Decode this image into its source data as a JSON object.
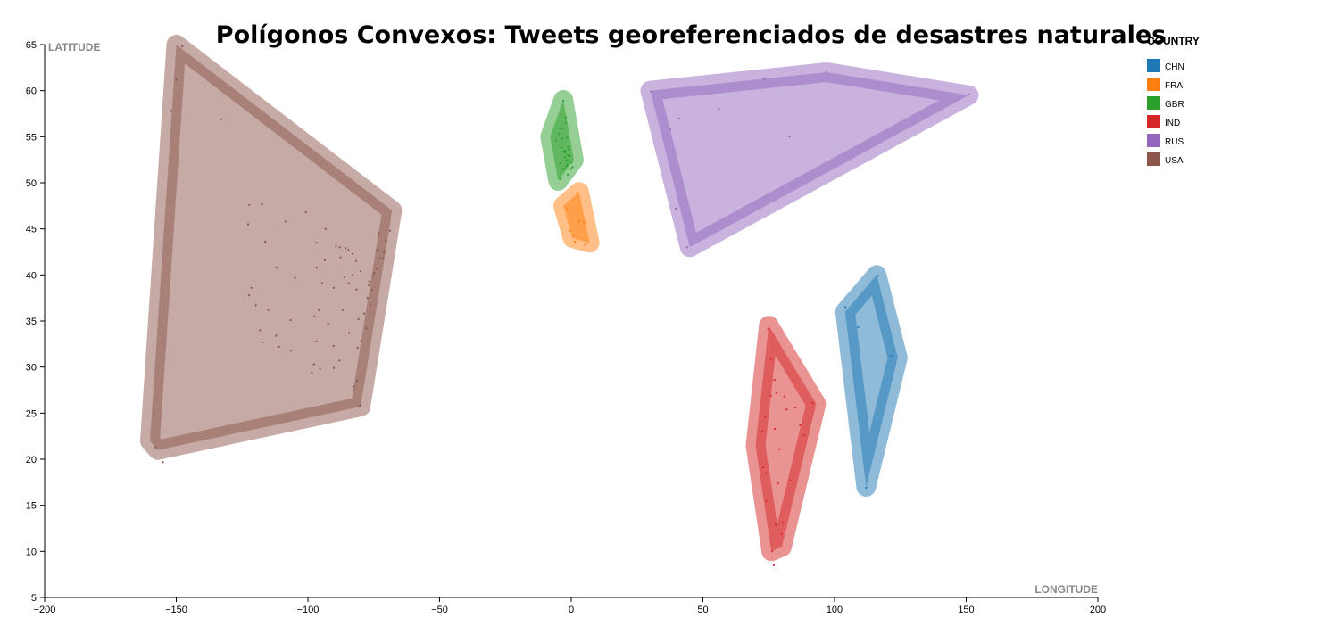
{
  "chart_data": {
    "type": "scatter",
    "title": "Polígonos Convexos: Tweets georeferenciados de desastres naturales",
    "xlabel": "LONGITUDE",
    "ylabel": "LATITUDE",
    "xlim": [
      -200,
      200
    ],
    "ylim": [
      5,
      65
    ],
    "x_ticks": [
      -200,
      -150,
      -100,
      -50,
      0,
      50,
      100,
      150,
      200
    ],
    "y_ticks": [
      5,
      10,
      15,
      20,
      25,
      30,
      35,
      40,
      45,
      50,
      55,
      60,
      65
    ],
    "x_tick_labels": [
      "−200",
      "−150",
      "−100",
      "−50",
      "0",
      "50",
      "100",
      "150",
      "200"
    ],
    "y_tick_labels": [
      "5",
      "10",
      "15",
      "20",
      "25",
      "30",
      "35",
      "40",
      "45",
      "50",
      "55",
      "60",
      "65"
    ],
    "legend": {
      "title": "COUNTRY",
      "position": "right"
    },
    "series": [
      {
        "name": "CHN",
        "color": "#1f77b4",
        "hull": [
          [
            116,
            40
          ],
          [
            124,
            31
          ],
          [
            112,
            17
          ],
          [
            104,
            36
          ]
        ],
        "points": [
          [
            116.4,
            39.9
          ],
          [
            121.5,
            31.2
          ],
          [
            112,
            16.9
          ],
          [
            104.1,
            36.5
          ],
          [
            108.9,
            34.3
          ]
        ]
      },
      {
        "name": "FRA",
        "color": "#ff7f0e",
        "hull": [
          [
            3,
            49
          ],
          [
            7,
            43.5
          ],
          [
            0.5,
            44
          ],
          [
            -3,
            47.5
          ]
        ],
        "points": [
          [
            2.3,
            48.9
          ],
          [
            5.4,
            43.3
          ],
          [
            -1.5,
            47.2
          ],
          [
            1.4,
            43.6
          ],
          [
            4.8,
            45.7
          ],
          [
            0.7,
            44.3
          ],
          [
            -0.6,
            44.8
          ],
          [
            3.1,
            45.8
          ]
        ]
      },
      {
        "name": "GBR",
        "color": "#2ca02c",
        "hull": [
          [
            -3,
            59
          ],
          [
            1,
            52.5
          ],
          [
            -5,
            50.2
          ],
          [
            -8,
            55
          ]
        ],
        "points": [
          [
            -3.2,
            55.9
          ],
          [
            -4.3,
            55.9
          ],
          [
            -0.1,
            51.5
          ],
          [
            -2.2,
            53.5
          ],
          [
            -1.5,
            52.4
          ],
          [
            -2.6,
            51.5
          ],
          [
            -1.6,
            54.9
          ],
          [
            -5.9,
            54.6
          ],
          [
            -3.2,
            51.5
          ],
          [
            -4.1,
            50.4
          ],
          [
            -1.1,
            53.9
          ],
          [
            -2.9,
            53.4
          ],
          [
            -1.3,
            50.9
          ],
          [
            0.1,
            52.2
          ],
          [
            -3.0,
            58.9
          ],
          [
            -2.1,
            57.1
          ],
          [
            -1.9,
            52.5
          ],
          [
            -2.3,
            53.3
          ],
          [
            -0.5,
            52.9
          ],
          [
            -3.5,
            54.8
          ],
          [
            -1.2,
            53.0
          ],
          [
            -4.2,
            52.1
          ],
          [
            -2.5,
            52.8
          ],
          [
            -1.8,
            51.8
          ],
          [
            0.5,
            51.7
          ],
          [
            -0.9,
            53.6
          ],
          [
            -2.0,
            56.5
          ],
          [
            -4.6,
            55.3
          ],
          [
            -3.7,
            53.8
          ],
          [
            -1.4,
            52.0
          ]
        ]
      },
      {
        "name": "IND",
        "color": "#d62728",
        "hull": [
          [
            75,
            34.5
          ],
          [
            93,
            26
          ],
          [
            80,
            10.5
          ],
          [
            76,
            10
          ],
          [
            70,
            21.5
          ]
        ],
        "points": [
          [
            77.2,
            28.6
          ],
          [
            72.8,
            19.1
          ],
          [
            88.4,
            22.6
          ],
          [
            80.3,
            13.1
          ],
          [
            78.5,
            17.4
          ],
          [
            77.6,
            12.9
          ],
          [
            73.9,
            18.5
          ],
          [
            75.8,
            26.9
          ],
          [
            80.9,
            26.8
          ],
          [
            85.1,
            25.6
          ],
          [
            76.9,
            8.5
          ],
          [
            76.3,
            10.0
          ],
          [
            74.8,
            34.1
          ],
          [
            91.7,
            26.1
          ],
          [
            72.6,
            23.0
          ],
          [
            79.1,
            21.1
          ],
          [
            83.3,
            17.7
          ],
          [
            75.9,
            30.9
          ],
          [
            77.3,
            23.3
          ],
          [
            73.7,
            24.6
          ],
          [
            86.9,
            23.7
          ],
          [
            78.0,
            27.2
          ],
          [
            81.8,
            25.4
          ],
          [
            79.9,
            11.9
          ],
          [
            74.1,
            15.5
          ]
        ]
      },
      {
        "name": "RUS",
        "color": "#9467bd",
        "hull": [
          [
            30,
            60
          ],
          [
            97,
            62
          ],
          [
            151,
            59.5
          ],
          [
            45,
            43
          ]
        ],
        "points": [
          [
            30.3,
            59.9
          ],
          [
            37.6,
            55.8
          ],
          [
            73.4,
            61.3
          ],
          [
            97,
            62
          ],
          [
            151,
            59.6
          ],
          [
            82.9,
            55
          ],
          [
            44,
            43
          ],
          [
            39.7,
            47.2
          ],
          [
            56,
            58
          ],
          [
            41,
            57
          ]
        ]
      },
      {
        "name": "USA",
        "color": "#8c564b",
        "hull": [
          [
            -150,
            65
          ],
          [
            -68,
            47
          ],
          [
            -80,
            25.7
          ],
          [
            -157,
            21
          ],
          [
            -160,
            22
          ]
        ],
        "points": [
          [
            -74.0,
            40.7
          ],
          [
            -118.2,
            34.0
          ],
          [
            -87.6,
            41.9
          ],
          [
            -95.4,
            29.8
          ],
          [
            -80.2,
            25.8
          ],
          [
            -122.4,
            37.8
          ],
          [
            -122.3,
            47.6
          ],
          [
            -104.9,
            39.7
          ],
          [
            -84.4,
            33.7
          ],
          [
            -71.1,
            42.4
          ],
          [
            -90.1,
            29.9
          ],
          [
            -112.1,
            33.4
          ],
          [
            -97.7,
            30.3
          ],
          [
            -96.8,
            32.8
          ],
          [
            -117.2,
            32.7
          ],
          [
            -77.0,
            38.9
          ],
          [
            -75.2,
            39.9
          ],
          [
            -93.3,
            45.0
          ],
          [
            -90.2,
            38.6
          ],
          [
            -86.8,
            36.2
          ],
          [
            -81.7,
            41.5
          ],
          [
            -83.0,
            42.3
          ],
          [
            -80.0,
            40.4
          ],
          [
            -82.5,
            27.9
          ],
          [
            -81.4,
            28.5
          ],
          [
            -115.1,
            36.2
          ],
          [
            -111.9,
            40.8
          ],
          [
            -122.7,
            45.5
          ],
          [
            -149.9,
            61.2
          ],
          [
            -157.9,
            21.3
          ],
          [
            -68.8,
            44.8
          ],
          [
            -97.5,
            35.5
          ],
          [
            -94.6,
            39.1
          ],
          [
            -87.9,
            43.0
          ],
          [
            -86.2,
            39.8
          ],
          [
            -84.5,
            39.1
          ],
          [
            -78.6,
            35.8
          ],
          [
            -80.8,
            35.2
          ],
          [
            -76.6,
            39.3
          ],
          [
            -73.8,
            42.7
          ],
          [
            -72.7,
            41.8
          ],
          [
            -79.9,
            32.8
          ],
          [
            -81.1,
            32.1
          ],
          [
            -88.0,
            30.7
          ],
          [
            -90.2,
            32.3
          ],
          [
            -92.3,
            34.7
          ],
          [
            -95.9,
            36.2
          ],
          [
            -98.5,
            29.4
          ],
          [
            -106.5,
            31.8
          ],
          [
            -106.6,
            35.1
          ],
          [
            -110.9,
            32.2
          ],
          [
            -119.8,
            36.7
          ],
          [
            -121.5,
            38.6
          ],
          [
            -116.2,
            43.6
          ],
          [
            -117.4,
            47.7
          ],
          [
            -108.5,
            45.8
          ],
          [
            -96.7,
            40.8
          ],
          [
            -96.7,
            43.5
          ],
          [
            -100.8,
            46.8
          ],
          [
            -93.6,
            41.6
          ],
          [
            -89.4,
            43.1
          ],
          [
            -85.7,
            42.9
          ],
          [
            -84.6,
            42.7
          ],
          [
            -83.0,
            40.0
          ],
          [
            -81.6,
            38.4
          ],
          [
            -77.4,
            37.5
          ],
          [
            -76.3,
            36.8
          ],
          [
            -77.9,
            34.2
          ],
          [
            -75.6,
            38.4
          ],
          [
            -74.8,
            40.2
          ],
          [
            -73.2,
            44.5
          ],
          [
            -70.3,
            43.7
          ],
          [
            -71.4,
            41.8
          ],
          [
            -155.1,
            19.7
          ],
          [
            -152.0,
            57.8
          ],
          [
            -147.7,
            64.8
          ],
          [
            -133.0,
            56.9
          ]
        ]
      }
    ]
  }
}
